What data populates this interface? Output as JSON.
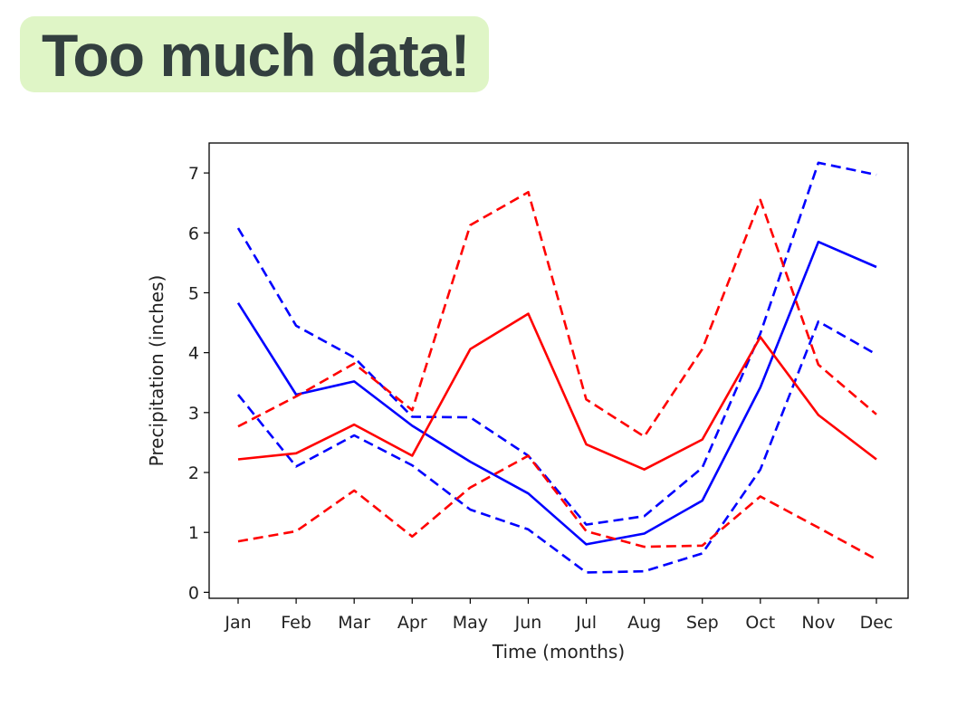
{
  "slide": {
    "title": "Too much data!"
  },
  "colors": {
    "title_highlight": "#dff5c6",
    "title_text": "#333f3f",
    "blue": "#0000ff",
    "red": "#ff0000"
  },
  "chart_data": {
    "type": "line",
    "title": "",
    "xlabel": "Time (months)",
    "ylabel": "Precipitation (inches)",
    "categories": [
      "Jan",
      "Feb",
      "Mar",
      "Apr",
      "May",
      "Jun",
      "Jul",
      "Aug",
      "Sep",
      "Oct",
      "Nov",
      "Dec"
    ],
    "ylim": [
      -0.1,
      7.5
    ],
    "yticks": [
      0,
      1,
      2,
      3,
      4,
      5,
      6,
      7
    ],
    "grid": false,
    "series": [
      {
        "name": "blue-mean",
        "color": "#0000ff",
        "style": "solid",
        "values": [
          4.83,
          3.3,
          3.52,
          2.78,
          2.18,
          1.65,
          0.8,
          0.98,
          1.53,
          3.42,
          5.85,
          5.43
        ]
      },
      {
        "name": "blue-upper",
        "color": "#0000ff",
        "style": "dashed",
        "values": [
          6.08,
          4.45,
          3.92,
          2.93,
          2.92,
          2.28,
          1.13,
          1.27,
          2.08,
          4.32,
          7.17,
          6.97
        ]
      },
      {
        "name": "blue-lower",
        "color": "#0000ff",
        "style": "dashed",
        "values": [
          3.3,
          2.1,
          2.62,
          2.12,
          1.38,
          1.05,
          0.33,
          0.35,
          0.65,
          2.05,
          4.52,
          3.97
        ]
      },
      {
        "name": "red-mean",
        "color": "#ff0000",
        "style": "solid",
        "values": [
          2.22,
          2.32,
          2.8,
          2.28,
          4.06,
          4.65,
          2.47,
          2.05,
          2.55,
          4.26,
          2.96,
          2.22
        ]
      },
      {
        "name": "red-upper",
        "color": "#ff0000",
        "style": "dashed",
        "values": [
          2.77,
          3.27,
          3.82,
          3.04,
          6.13,
          6.68,
          3.22,
          2.6,
          4.06,
          6.55,
          3.8,
          2.97
        ]
      },
      {
        "name": "red-lower",
        "color": "#ff0000",
        "style": "dashed",
        "values": [
          0.85,
          1.02,
          1.7,
          0.93,
          1.75,
          2.28,
          1.02,
          0.76,
          0.78,
          1.6,
          1.08,
          0.55
        ]
      }
    ]
  }
}
